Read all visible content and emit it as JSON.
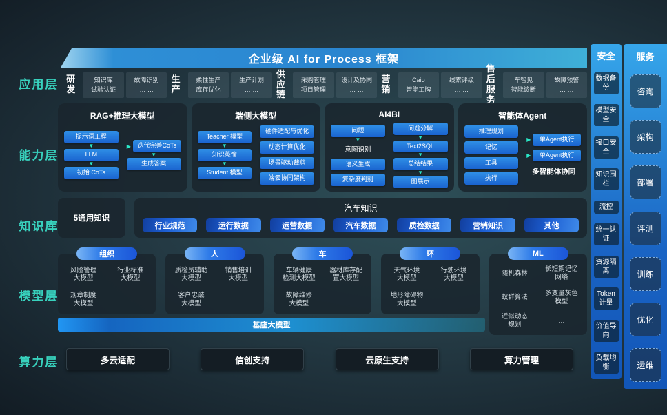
{
  "banner": {
    "title": "企业级 AI for Process 框架"
  },
  "app": {
    "label": "应用层",
    "groups": [
      {
        "name": "研发",
        "boxes": [
          [
            "知识库",
            "试验认证"
          ],
          [
            "故障识别",
            "… …"
          ]
        ]
      },
      {
        "name": "生产",
        "boxes": [
          [
            "柔性生产",
            "库存优化"
          ],
          [
            "生产计划",
            "… …"
          ]
        ]
      },
      {
        "name": "供应\n链",
        "boxes": [
          [
            "采购管理",
            "项目管理"
          ],
          [
            "设计及协同",
            "… …"
          ]
        ]
      },
      {
        "name": "营销",
        "boxes": [
          [
            "Caio",
            "智能工牌"
          ],
          [
            "线索评级",
            "… …"
          ]
        ]
      },
      {
        "name": "售后\n服务",
        "boxes": [
          [
            "车智见",
            "智能诊断"
          ],
          [
            "故障预警",
            "… …"
          ]
        ]
      }
    ]
  },
  "capability": {
    "label": "能力层",
    "boxes": [
      {
        "title": "RAG+推理大模型",
        "cols": [
          {
            "nodes": [
              {
                "k": "btn",
                "t": "提示词工程"
              },
              {
                "k": "arr"
              },
              {
                "k": "btn",
                "t": "LLM"
              },
              {
                "k": "arr"
              },
              {
                "k": "btn",
                "t": "初始 CoTs"
              }
            ]
          },
          {
            "nodes": [
              {
                "k": "hbtn",
                "t": "迭代完善CoTs"
              },
              {
                "k": "arr"
              },
              {
                "k": "btn",
                "t": "生成答案"
              }
            ]
          }
        ]
      },
      {
        "title": "端侧大模型",
        "cols": [
          {
            "nodes": [
              {
                "k": "btn",
                "t": "Teacher 模型"
              },
              {
                "k": "arr"
              },
              {
                "k": "btn",
                "t": "知识蒸馏"
              },
              {
                "k": "arr"
              },
              {
                "k": "btn",
                "t": "Student 模型"
              }
            ]
          },
          {
            "nodes": [
              {
                "k": "btn",
                "t": "硬件适配与优化"
              },
              {
                "k": "gap"
              },
              {
                "k": "btn",
                "t": "动态计算优化"
              },
              {
                "k": "gap"
              },
              {
                "k": "btn",
                "t": "场景驱动裁剪"
              },
              {
                "k": "gap"
              },
              {
                "k": "btn",
                "t": "端云协同架构"
              }
            ]
          }
        ]
      },
      {
        "title": "AI4BI",
        "cols": [
          {
            "nodes": [
              {
                "k": "btn",
                "t": "问题"
              },
              {
                "k": "arr"
              },
              {
                "k": "text",
                "t": "意图识别"
              },
              {
                "k": "gap"
              },
              {
                "k": "btn",
                "t": "语义生成"
              },
              {
                "k": "gap"
              },
              {
                "k": "btn",
                "t": "复杂度判别"
              }
            ]
          },
          {
            "nodes": [
              {
                "k": "btn",
                "t": "问题分解"
              },
              {
                "k": "arr"
              },
              {
                "k": "btn",
                "t": "Text2SQL"
              },
              {
                "k": "arr"
              },
              {
                "k": "btn",
                "t": "总结结果"
              },
              {
                "k": "arr"
              },
              {
                "k": "btn",
                "t": "图展示"
              }
            ]
          }
        ]
      },
      {
        "title": "智能体Agent",
        "cols": [
          {
            "nodes": [
              {
                "k": "btn",
                "t": "推理规划"
              },
              {
                "k": "gap"
              },
              {
                "k": "btn",
                "t": "记忆"
              },
              {
                "k": "gap"
              },
              {
                "k": "btn",
                "t": "工具"
              },
              {
                "k": "gap"
              },
              {
                "k": "btn",
                "t": "执行"
              }
            ]
          },
          {
            "nodes": [
              {
                "k": "hbtn",
                "t": "单Agent执行"
              },
              {
                "k": "gap"
              },
              {
                "k": "hbtn",
                "t": "单Agent执行"
              },
              {
                "k": "cap",
                "t": "多智能体协同"
              }
            ]
          }
        ]
      }
    ]
  },
  "knowledge": {
    "label": "知识库",
    "general": "5通用知识",
    "domain_title": "汽车知识",
    "pills": [
      "行业规范",
      "运行数据",
      "运营数据",
      "汽车数据",
      "质检数据",
      "营销知识",
      "其他"
    ]
  },
  "model": {
    "label": "模型层",
    "base_bar": "基座大模型",
    "groups": [
      {
        "pill": "组织",
        "items": [
          "风险管理\n大模型",
          "行业标准\n大模型",
          "规章制度\n大模型",
          "…"
        ]
      },
      {
        "pill": "人",
        "items": [
          "质检员辅助\n大模型",
          "销售培训\n大模型",
          "客户忠诚\n大模型",
          "…"
        ]
      },
      {
        "pill": "车",
        "items": [
          "车辆健康\n检测大模型",
          "器材库存配\n置大模型",
          "故障维修\n大模型",
          "…"
        ]
      },
      {
        "pill": "环",
        "items": [
          "天气环境\n大模型",
          "行驶环境\n大模型",
          "地形障碍物\n大模型",
          "…"
        ]
      },
      {
        "pill": "ML",
        "items": [
          "随机森林",
          "长短期记忆\n网络",
          "蚁群算法",
          "多变量灰色\n模型",
          "近似动态\n规划",
          "…"
        ],
        "tall": true
      }
    ]
  },
  "compute": {
    "label": "算力层",
    "boxes": [
      "多云适配",
      "信创支持",
      "云原生支持",
      "算力管理"
    ]
  },
  "security": {
    "header": "安全",
    "items": [
      "数据备份",
      "模型安全",
      "接口安全",
      "知识围栏",
      "流控",
      "统一认证",
      "资源隔离",
      "Token计量",
      "价值导向",
      "负载均衡"
    ]
  },
  "service": {
    "header": "服务",
    "items": [
      "咨询",
      "架构",
      "部署",
      "评测",
      "训练",
      "优化",
      "运维"
    ]
  },
  "colors": {
    "accent_teal": "#38d1bd",
    "arrow_teal": "#2be8c8",
    "button_blue": "#1a63cf",
    "banner_blue": "#2a85d0",
    "pill_blue": "#1d5fd4"
  }
}
